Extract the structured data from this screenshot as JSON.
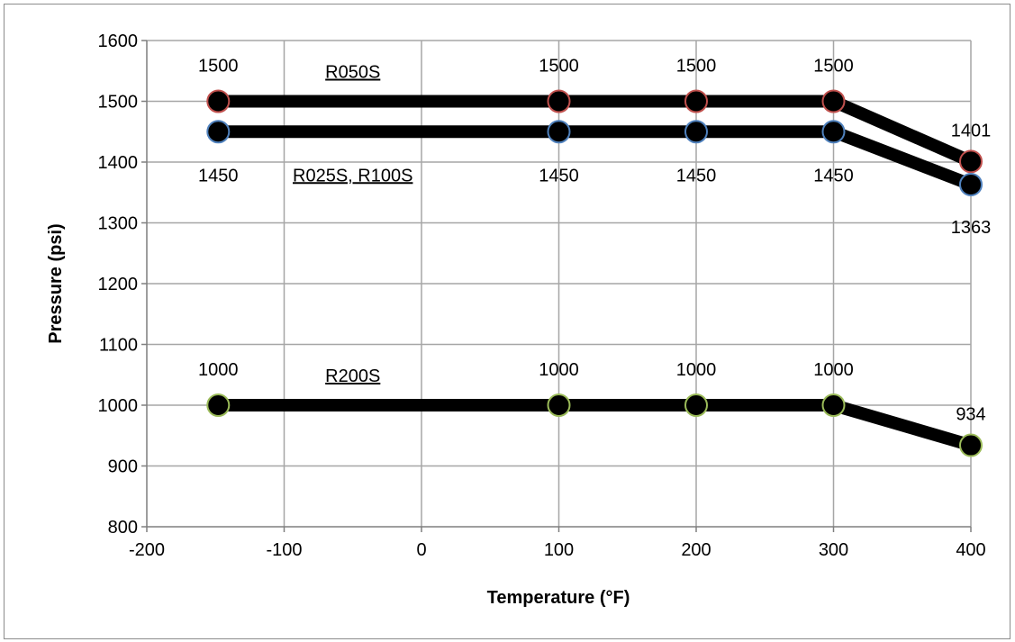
{
  "chart_data": {
    "type": "line",
    "title": "",
    "xlabel": "Temperature (°F)",
    "ylabel": "Pressure (psi)",
    "xlim": [
      -200,
      400
    ],
    "ylim": [
      800,
      1600
    ],
    "xticks": [
      -200,
      -100,
      0,
      100,
      200,
      300,
      400
    ],
    "yticks": [
      800,
      900,
      1000,
      1100,
      1200,
      1300,
      1400,
      1500,
      1600
    ],
    "xtick_labels": [
      "-200",
      "-100",
      "0",
      "100",
      "200",
      "300",
      "400"
    ],
    "ytick_labels": [
      "800",
      "900",
      "1000",
      "1100",
      "1200",
      "1300",
      "1400",
      "1500",
      "1600"
    ],
    "grid": true,
    "legend": "none",
    "series": [
      {
        "name": "R050S",
        "x": [
          -148,
          100,
          200,
          300,
          400
        ],
        "y": [
          1500,
          1500,
          1500,
          1500,
          1401
        ],
        "labels": [
          "1500",
          "1500",
          "1500",
          "1500",
          "1401"
        ],
        "label_pos": "above",
        "marker_edge": "#c0504d"
      },
      {
        "name": "R025S, R100S",
        "x": [
          -148,
          100,
          200,
          300,
          400
        ],
        "y": [
          1450,
          1450,
          1450,
          1450,
          1363
        ],
        "labels": [
          "1450",
          "1450",
          "1450",
          "1450",
          "1363"
        ],
        "label_pos": "below",
        "marker_edge": "#4f81bd"
      },
      {
        "name": "R200S",
        "x": [
          -148,
          100,
          200,
          300,
          400
        ],
        "y": [
          1000,
          1000,
          1000,
          1000,
          934
        ],
        "labels": [
          "1000",
          "1000",
          "1000",
          "1000",
          "934"
        ],
        "label_pos": "above",
        "marker_edge": "#9bbb59"
      }
    ],
    "colors": {
      "line": "#000000",
      "marker_fill": "#000000",
      "grid": "#a6a6a6"
    }
  }
}
